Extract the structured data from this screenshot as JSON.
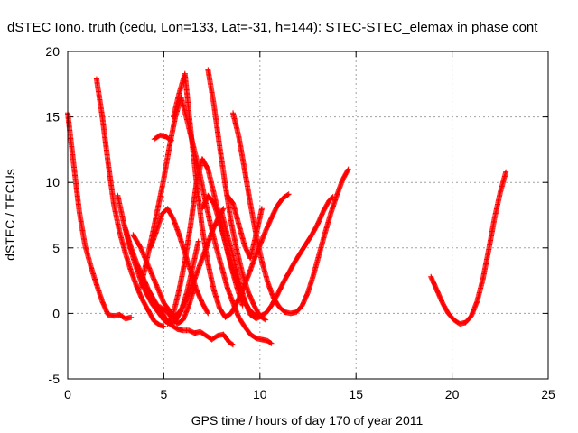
{
  "chart_data": {
    "type": "scatter",
    "title": "dSTEC Iono. truth (cedu, Lon=133, Lat=-31, h=144): STEC-STEC_elemax in phase cont",
    "xlabel": "GPS time / hours of day 170 of year 2011",
    "ylabel": "dSTEC  / TECUs",
    "xlim": [
      0,
      25
    ],
    "ylim": [
      -5,
      20
    ],
    "xticks": [
      "0",
      "5",
      "10",
      "15",
      "20",
      "25"
    ],
    "yticks": [
      "-5",
      "0",
      "5",
      "10",
      "15",
      "20"
    ],
    "grid": true,
    "legend": "none",
    "marker": "plus",
    "color": "#ff0000",
    "series": [
      {
        "x": [
          0.0,
          0.3,
          0.6,
          0.9,
          1.2,
          1.5,
          1.8,
          2.1,
          2.4,
          2.7,
          3.0,
          3.3
        ],
        "y": [
          15.3,
          11.5,
          7.8,
          5.2,
          3.6,
          2.2,
          0.9,
          -0.1,
          -0.2,
          -0.1,
          -0.4,
          -0.3
        ]
      },
      {
        "x": [
          1.5,
          1.8,
          2.1,
          2.4,
          2.7,
          3.0,
          3.3,
          3.6,
          3.9,
          4.2,
          4.5,
          4.8,
          5.0
        ],
        "y": [
          17.9,
          15.0,
          11.5,
          8.3,
          6.2,
          4.6,
          3.2,
          2.0,
          1.0,
          0.2,
          -0.6,
          -0.9,
          -1.0
        ]
      },
      {
        "x": [
          2.6,
          2.9,
          3.2,
          3.5,
          3.8,
          4.1,
          4.4,
          4.7,
          5.0,
          5.3,
          5.6,
          5.9,
          6.2,
          6.5,
          6.8
        ],
        "y": [
          9.0,
          7.0,
          5.2,
          3.8,
          2.5,
          1.5,
          0.7,
          0.1,
          -0.5,
          -0.8,
          -0.6,
          0.2,
          1.6,
          3.5,
          5.5
        ]
      },
      {
        "x": [
          3.0,
          3.3,
          3.6,
          3.9,
          4.2,
          4.5,
          4.8,
          5.1,
          5.4,
          5.7,
          6.0,
          6.3,
          6.6,
          6.9,
          7.2,
          7.5,
          7.8,
          8.1,
          8.4,
          8.6
        ],
        "y": [
          6.5,
          5.0,
          3.8,
          2.8,
          1.8,
          1.0,
          0.3,
          -0.4,
          -0.9,
          -1.2,
          -1.3,
          -1.3,
          -1.5,
          -1.4,
          -1.7,
          -2.0,
          -1.7,
          -1.6,
          -2.2,
          -2.4
        ]
      },
      {
        "x": [
          3.4,
          3.8,
          4.2,
          4.6,
          5.0,
          5.4,
          5.7,
          6.0,
          6.3,
          6.6
        ],
        "y": [
          6.0,
          5.0,
          3.6,
          2.2,
          0.8,
          0.0,
          -0.8,
          -0.5,
          0.6,
          2.0
        ]
      },
      {
        "x": [
          4.3,
          4.6,
          4.9,
          5.2,
          5.5,
          5.8,
          6.1,
          6.4,
          6.7,
          7.0,
          7.3
        ],
        "y": [
          5.0,
          6.2,
          7.6,
          8.0,
          7.2,
          6.0,
          4.6,
          3.2,
          1.8,
          0.8,
          0.0
        ]
      },
      {
        "x": [
          4.5,
          4.8,
          5.1,
          5.4
        ],
        "y": [
          13.3,
          13.6,
          13.5,
          13.2
        ]
      },
      {
        "x": [
          3.8,
          4.1,
          4.4,
          4.7,
          5.0,
          5.3,
          5.6,
          5.9,
          6.2,
          6.5,
          6.8,
          7.1,
          7.4,
          7.7,
          8.0,
          8.3,
          8.6,
          8.9,
          9.2,
          9.5,
          9.8,
          10.1,
          10.4,
          10.6
        ],
        "y": [
          2.0,
          4.0,
          6.0,
          8.1,
          10.3,
          12.8,
          15.0,
          16.5,
          14.8,
          13.0,
          11.2,
          9.0,
          7.0,
          5.2,
          3.6,
          2.0,
          0.8,
          -0.3,
          -1.0,
          -1.6,
          -1.9,
          -2.0,
          -2.1,
          -2.3
        ]
      },
      {
        "x": [
          4.8,
          5.1,
          5.4,
          5.7,
          6.0,
          6.3,
          6.6,
          6.9,
          7.2,
          7.5,
          7.8,
          8.1
        ],
        "y": [
          0.5,
          0.2,
          -0.3,
          -0.1,
          0.5,
          1.5,
          2.6,
          3.8,
          5.0,
          6.2,
          7.2,
          8.0
        ]
      },
      {
        "x": [
          5.2,
          5.5,
          5.8,
          6.1,
          6.4,
          6.7,
          7.0,
          7.3,
          7.6,
          7.9,
          8.2,
          8.5,
          8.8,
          9.1
        ],
        "y": [
          -0.8,
          0.0,
          1.8,
          4.0,
          6.8,
          10.0,
          11.8,
          11.0,
          9.2,
          7.3,
          5.4,
          3.6,
          2.0,
          0.6
        ]
      },
      {
        "x": [
          5.5,
          5.8,
          6.1,
          6.4,
          6.7,
          7.0,
          7.3,
          7.6,
          7.9,
          8.2,
          8.5,
          8.8,
          9.1,
          9.4,
          9.7,
          10.0,
          10.3,
          10.6,
          10.9,
          11.2,
          11.5
        ],
        "y": [
          15.0,
          16.8,
          18.3,
          14.0,
          10.0,
          6.5,
          3.8,
          1.8,
          0.4,
          -0.3,
          0.0,
          0.8,
          1.8,
          2.9,
          4.1,
          5.2,
          6.3,
          7.3,
          8.2,
          8.8,
          9.1
        ]
      },
      {
        "x": [
          7.3,
          7.6,
          7.9,
          8.2,
          8.5,
          8.8,
          9.1,
          9.4,
          9.7,
          10.0,
          10.3
        ],
        "y": [
          18.6,
          16.0,
          12.8,
          9.8,
          7.0,
          4.8,
          3.0,
          1.6,
          0.6,
          -0.2,
          -0.5
        ]
      },
      {
        "x": [
          7.0,
          7.3,
          7.6,
          7.9,
          8.2,
          8.5,
          8.8,
          9.1,
          9.4,
          9.7,
          10.0,
          10.3,
          10.6,
          10.9,
          11.2,
          11.5,
          11.8,
          12.1,
          12.4,
          12.7,
          13.0,
          13.3,
          13.6,
          13.8
        ],
        "y": [
          8.0,
          9.0,
          8.4,
          7.0,
          5.4,
          3.8,
          2.4,
          1.2,
          0.4,
          -0.1,
          -0.2,
          0.0,
          0.6,
          1.4,
          2.3,
          3.1,
          3.9,
          4.6,
          5.3,
          6.0,
          6.8,
          7.8,
          8.6,
          8.9
        ]
      },
      {
        "x": [
          8.6,
          8.9,
          9.2,
          9.5,
          9.8,
          10.1,
          10.4,
          10.7,
          11.0,
          11.3,
          11.6,
          11.9,
          12.2,
          12.5,
          12.8,
          13.1,
          13.4,
          13.7,
          14.0,
          14.3,
          14.6
        ],
        "y": [
          15.3,
          13.5,
          11.0,
          8.4,
          6.0,
          4.0,
          2.4,
          1.2,
          0.5,
          0.1,
          0.0,
          0.1,
          0.6,
          1.6,
          3.0,
          4.6,
          6.2,
          7.7,
          9.0,
          10.2,
          11.0
        ]
      },
      {
        "x": [
          8.0,
          8.3,
          8.6,
          8.9,
          9.2,
          9.5,
          9.8,
          10.1
        ],
        "y": [
          7.8,
          6.0,
          4.4,
          2.6,
          1.0,
          -0.1,
          -0.4,
          -0.2
        ]
      },
      {
        "x": [
          8.3,
          8.6,
          8.9,
          9.2,
          9.5,
          9.8,
          10.1
        ],
        "y": [
          9.0,
          8.4,
          6.8,
          5.2,
          4.2,
          6.0,
          8.0
        ]
      },
      {
        "x": [
          18.9,
          19.2,
          19.5,
          19.8,
          20.1,
          20.4,
          20.7,
          21.0,
          21.3,
          21.6,
          21.9,
          22.2,
          22.5,
          22.8
        ],
        "y": [
          2.8,
          1.8,
          0.8,
          0.0,
          -0.5,
          -0.8,
          -0.7,
          -0.2,
          0.9,
          2.6,
          4.8,
          7.2,
          9.2,
          10.8
        ]
      }
    ]
  }
}
